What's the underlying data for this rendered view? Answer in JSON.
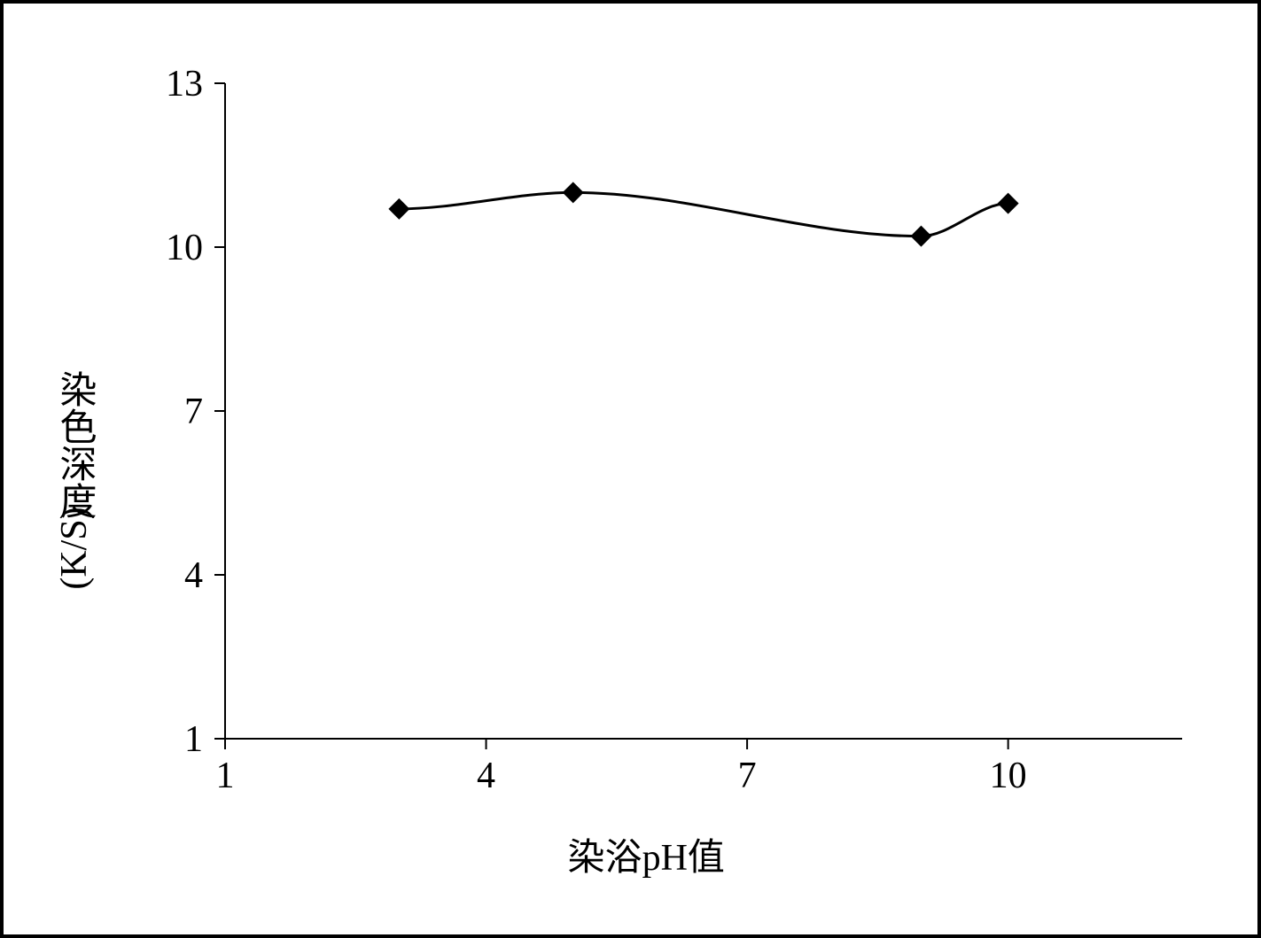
{
  "chart": {
    "type": "line",
    "xlabel_cn_prefix": "染浴",
    "xlabel_latin": "pH",
    "xlabel_cn_suffix": "值",
    "ylabel_cn": "染色深度",
    "ylabel_latin": "(K/S)",
    "xlim": [
      1,
      12
    ],
    "ylim": [
      1,
      13
    ],
    "xticks": [
      1,
      4,
      7,
      10
    ],
    "yticks": [
      1,
      4,
      7,
      10,
      13
    ],
    "points_x": [
      3.0,
      5.0,
      9.0,
      10.0
    ],
    "points_y": [
      10.7,
      11.0,
      10.2,
      10.8
    ],
    "line_color": "#000000",
    "line_width": 3,
    "marker_style": "diamond",
    "marker_size": 12,
    "marker_color": "#000000",
    "axis_color": "#000000",
    "axis_width": 2,
    "background_color": "#ffffff",
    "tick_fontsize": 42,
    "label_fontsize": 42,
    "font_family_latin": "Times New Roman",
    "font_family_cjk": "SimSun"
  }
}
